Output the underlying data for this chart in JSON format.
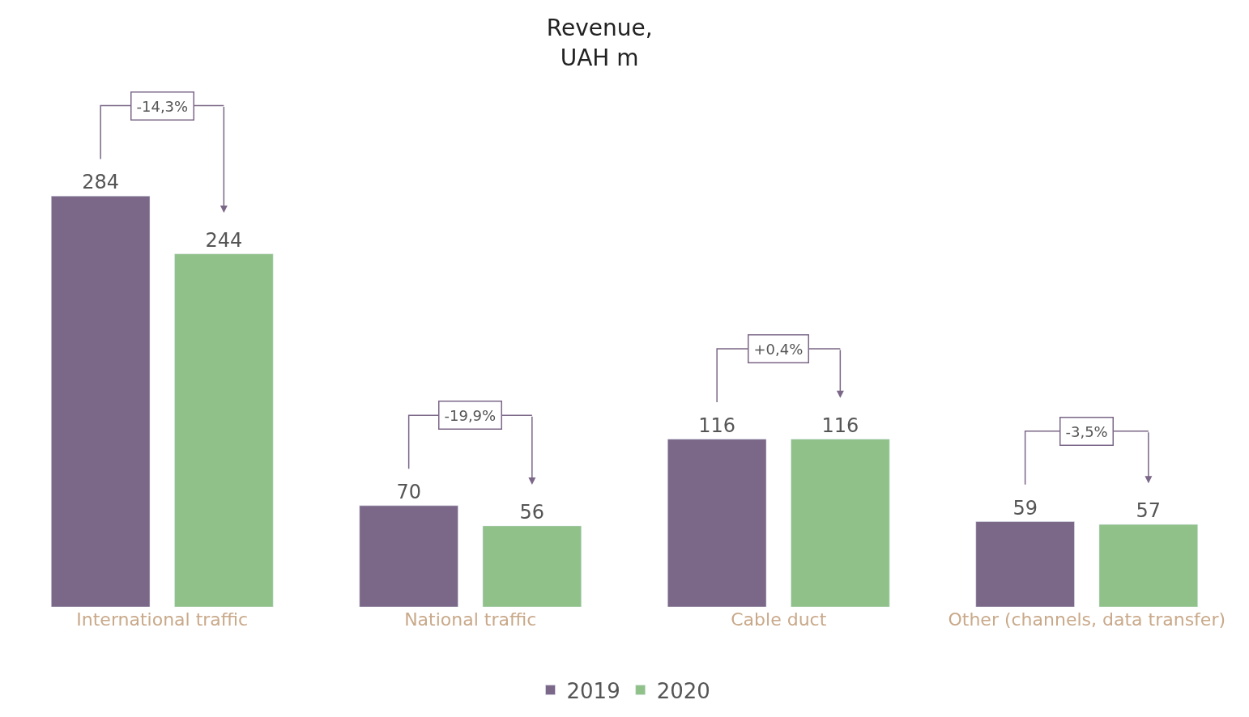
{
  "chart_data": {
    "type": "bar",
    "title": "Revenue,\nUAH m",
    "categories": [
      "International traffic",
      "National traffic",
      "Cable duct",
      "Other (channels, data transfer)"
    ],
    "series": [
      {
        "name": "2019",
        "color": "#7b6787",
        "values": [
          284,
          70,
          116,
          59
        ]
      },
      {
        "name": "2020",
        "color": "#8fc189",
        "values": [
          244,
          56,
          116,
          57
        ]
      }
    ],
    "data_labels": true,
    "tick_labels": "x",
    "legend": "bottom",
    "annotations": [
      "-14,3%",
      "-19,9%",
      "+0,4%",
      "-3,5%"
    ]
  }
}
